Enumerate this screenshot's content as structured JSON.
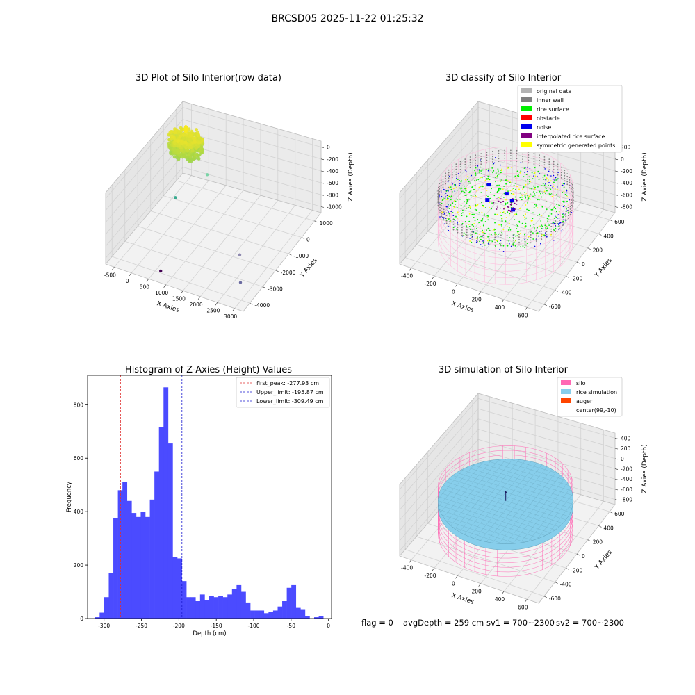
{
  "figure_title": "BRCSD05 2025-11-22 01:25:32",
  "chart_data": [
    {
      "type": "scatter3d",
      "title": "3D Plot of Silo Interior(row data)",
      "xlabel": "X Axies",
      "ylabel": "Y Axies",
      "zlabel": "Z Axies (Depth)",
      "x_ticks": [
        "-500",
        "0",
        "500",
        "1000",
        "1500",
        "2000",
        "2500",
        "3000"
      ],
      "y_ticks": [
        "-4000",
        "-3000",
        "-2000",
        "-1000",
        "0",
        "1000"
      ],
      "z_ticks": [
        "-1000",
        "-800",
        "-600",
        "-400",
        "-200",
        "0"
      ],
      "xlim": [
        -600,
        3300
      ],
      "ylim": [
        -4200,
        1300
      ],
      "zlim": [
        -1050,
        50
      ],
      "surface_cluster": {
        "x_range": [
          -450,
          450
        ],
        "y_range": [
          -450,
          450
        ],
        "z_range": [
          -320,
          0
        ]
      },
      "outliers": [
        {
          "x": 1000,
          "y": -1000,
          "z": -220,
          "color": "#7ad3a6"
        },
        {
          "x": 300,
          "y": -1500,
          "z": -560,
          "color": "#3aaa8f"
        },
        {
          "x": 2600,
          "y": -2700,
          "z": -720,
          "color": "#8f8ab0"
        },
        {
          "x": 2900,
          "y": -3400,
          "z": -900,
          "color": "#6a6aa0"
        },
        {
          "x": 800,
          "y": -3800,
          "z": -1000,
          "color": "#440154"
        }
      ]
    },
    {
      "type": "scatter3d",
      "title": "3D classify of Silo Interior",
      "xlabel": "X Axies",
      "ylabel": "Y Axies",
      "zlabel": "Z Axies (Depth)",
      "x_ticks": [
        "-400",
        "-200",
        "0",
        "200",
        "400",
        "600"
      ],
      "y_ticks": [
        "-600",
        "-400",
        "-200",
        "0",
        "200",
        "400",
        "600"
      ],
      "z_ticks": [
        "-800",
        "-600",
        "-400",
        "-200",
        "0",
        "200"
      ],
      "xlim": [
        -520,
        720
      ],
      "ylim": [
        -650,
        700
      ],
      "zlim": [
        -920,
        300
      ],
      "silo": {
        "center": [
          99,
          -10
        ],
        "radius": 540,
        "top": 0,
        "bottom": -900
      },
      "legend": [
        {
          "label": "original data",
          "color": "#b3b3b3"
        },
        {
          "label": "inner wall",
          "color": "#808080"
        },
        {
          "label": "rice surface",
          "color": "#00ee00"
        },
        {
          "label": "obstacle",
          "color": "#ff0000"
        },
        {
          "label": "noise",
          "color": "#0000ee"
        },
        {
          "label": "interpolated rice surface",
          "color": "#800080"
        },
        {
          "label": "symmetric generated points",
          "color": "#ffff00"
        }
      ]
    },
    {
      "type": "bar",
      "title": "Histogram of Z-Axies (Height) Values",
      "xlabel": "Depth (cm)",
      "ylabel": "Frequency",
      "x_ticks": [
        -300,
        -250,
        -200,
        -150,
        -100,
        -50,
        0
      ],
      "y_ticks": [
        0,
        200,
        400,
        600,
        800
      ],
      "xlim": [
        -322,
        4
      ],
      "ylim": [
        0,
        910
      ],
      "bin_start": -312,
      "bin_width": 6.1,
      "values": [
        5,
        22,
        80,
        170,
        375,
        480,
        510,
        440,
        395,
        380,
        400,
        380,
        445,
        550,
        715,
        865,
        655,
        230,
        225,
        140,
        80,
        80,
        65,
        90,
        70,
        85,
        80,
        85,
        80,
        90,
        110,
        125,
        100,
        60,
        30,
        30,
        30,
        20,
        25,
        30,
        45,
        65,
        115,
        125,
        40,
        35,
        10,
        0,
        5,
        10
      ],
      "bar_color": "#4b4bff",
      "lines": [
        {
          "label": "first_peak: -277.93 cm",
          "x": -277.93,
          "color": "#e03030"
        },
        {
          "label": "Upper_limit: -195.87 cm",
          "x": -195.87,
          "color": "#1a1ad0"
        },
        {
          "label": "Lower_limit: -309.49 cm",
          "x": -309.49,
          "color": "#1a1ad0"
        }
      ]
    },
    {
      "type": "surface3d",
      "title": "3D simulation of Silo Interior",
      "xlabel": "X Axies",
      "ylabel": "Y Axies",
      "zlabel": "Z Axies (Depth)",
      "x_ticks": [
        "-400",
        "-200",
        "0",
        "200",
        "400",
        "600"
      ],
      "y_ticks": [
        "-600",
        "-400",
        "-200",
        "0",
        "200",
        "400",
        "600"
      ],
      "z_ticks": [
        "-800",
        "-600",
        "-400",
        "-200",
        "0",
        "200",
        "400"
      ],
      "xlim": [
        -520,
        720
      ],
      "ylim": [
        -650,
        700
      ],
      "zlim": [
        -920,
        480
      ],
      "silo": {
        "center": [
          99,
          -10
        ],
        "radius": 540,
        "top": 0,
        "bottom": -900
      },
      "rice_level": -260,
      "legend": [
        {
          "label": "silo",
          "color": "#ff69b4"
        },
        {
          "label": "rice simulation",
          "color": "#87ceeb"
        },
        {
          "label": "auger",
          "color": "#ff4500"
        },
        {
          "label": "center(99,-10)",
          "color": ""
        }
      ]
    }
  ],
  "footer": {
    "flag": "flag = 0",
    "avg_depth": "avgDepth = 259 cm",
    "sv1": "sv1 = 700~2300",
    "sv2": "sv2 = 700~2300"
  }
}
